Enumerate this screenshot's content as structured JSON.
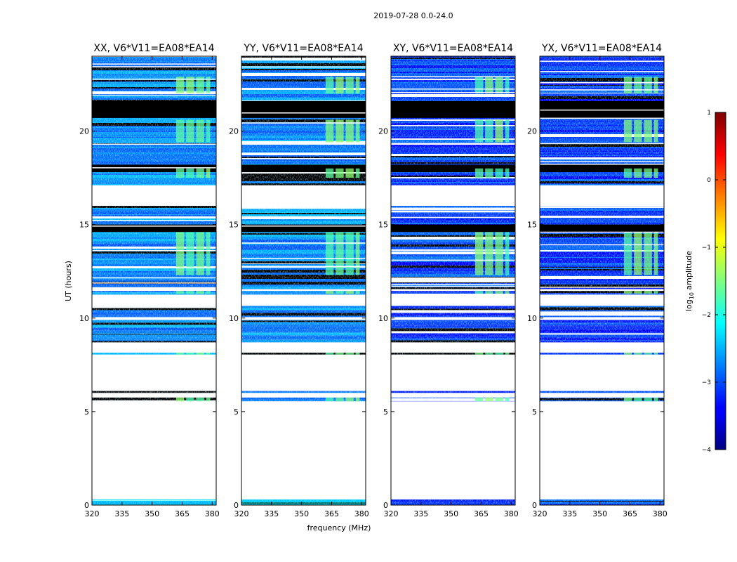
{
  "chart_data": {
    "type": "heatmap",
    "suptitle": "2019-07-28 0.0-24.0",
    "xlabel": "frequency (MHz)",
    "ylabel": "UT (hours)",
    "xlim": [
      320,
      382
    ],
    "ylim": [
      0,
      24
    ],
    "xticks": [
      "320",
      "335",
      "350",
      "365",
      "380"
    ],
    "yticks": [
      "0",
      "5",
      "10",
      "15",
      "20"
    ],
    "colormap": "jet",
    "colorbar": {
      "label": "log",
      "label_sub": "10",
      "label_tail": " amplitude",
      "range": [
        -4,
        1
      ],
      "ticks": [
        "−4",
        "−3",
        "−2",
        "−1",
        "0",
        "1"
      ]
    },
    "panels": [
      {
        "title": "XX, V6*V11=EA08*EA14",
        "base_level": -2.7,
        "rfi_level": -1.55
      },
      {
        "title": "YY, V6*V11=EA08*EA14",
        "base_level": -2.7,
        "rfi_level": -1.55
      },
      {
        "title": "XY, V6*V11=EA08*EA14",
        "base_level": -3.1,
        "rfi_level": -1.6
      },
      {
        "title": "YX, V6*V11=EA08*EA14",
        "base_level": -3.1,
        "rfi_level": -1.6
      }
    ],
    "data_time_blocks_hours": [
      [
        0.0,
        0.3
      ],
      [
        5.55,
        5.75
      ],
      [
        6.0,
        6.1
      ],
      [
        8.05,
        8.15
      ],
      [
        8.7,
        9.9
      ],
      [
        10.05,
        10.65
      ],
      [
        11.25,
        11.45
      ],
      [
        11.55,
        16.0
      ],
      [
        17.1,
        24.0
      ]
    ],
    "flagged_time_blocks_hours": [
      [
        20.7,
        21.6
      ],
      [
        17.8,
        18.2
      ],
      [
        14.6,
        15.0
      ]
    ],
    "rfi_frequency_bands_mhz": [
      [
        362,
        366
      ],
      [
        367,
        371
      ],
      [
        372,
        376
      ],
      [
        377,
        379
      ]
    ],
    "rfi_time_ranges_hours": [
      [
        22.0,
        22.9
      ],
      [
        19.4,
        20.6
      ],
      [
        17.5,
        18.0
      ],
      [
        12.3,
        14.6
      ],
      [
        11.3,
        11.45
      ],
      [
        8.05,
        8.15
      ],
      [
        5.55,
        5.75
      ]
    ]
  }
}
